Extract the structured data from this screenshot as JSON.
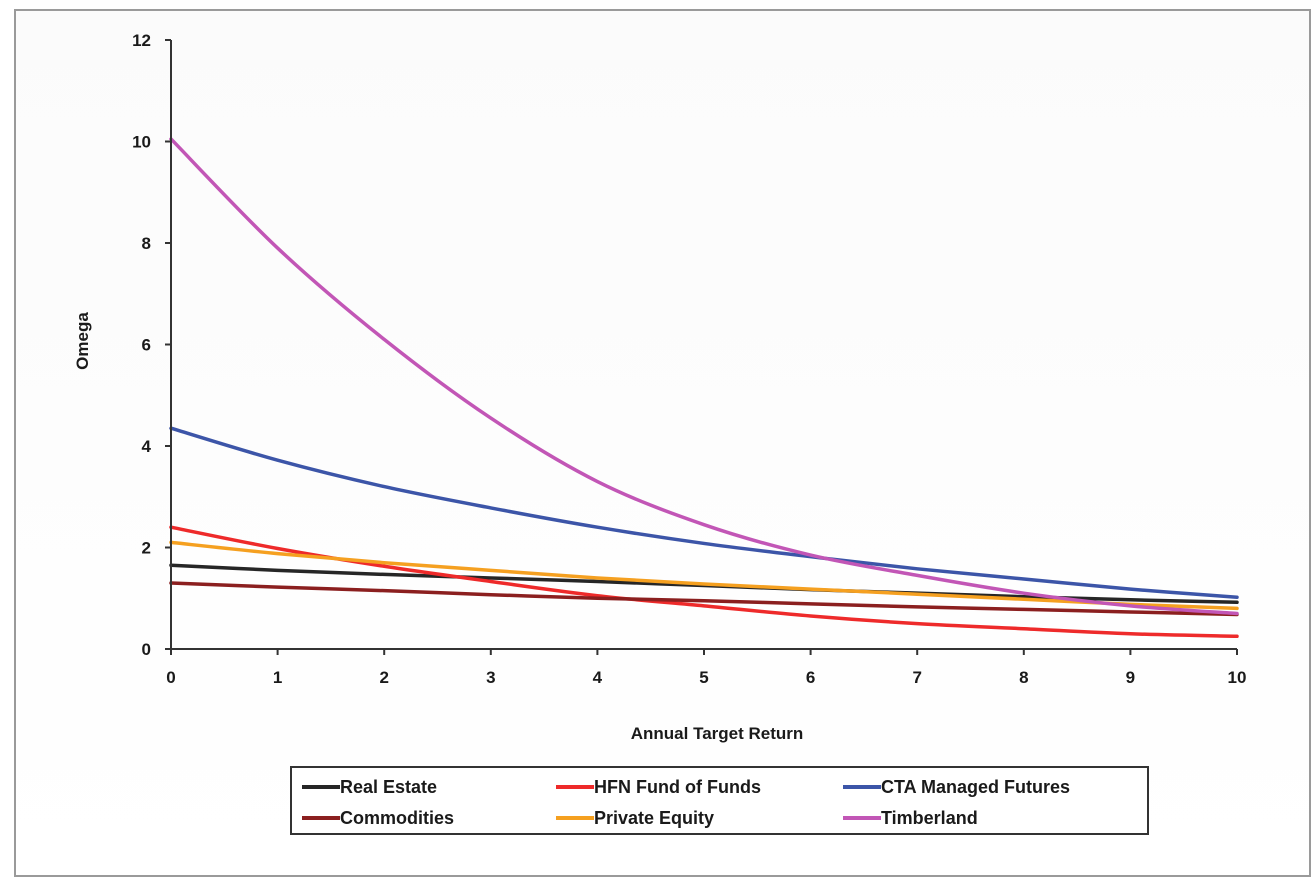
{
  "chart_data": {
    "type": "line",
    "title": "",
    "xlabel": "Annual Target Return",
    "ylabel": "Omega",
    "xlim": [
      0,
      10
    ],
    "ylim": [
      0,
      12
    ],
    "x_ticks": [
      0,
      1,
      2,
      3,
      4,
      5,
      6,
      7,
      8,
      9,
      10
    ],
    "y_ticks": [
      0,
      2,
      4,
      6,
      8,
      10,
      12
    ],
    "grid": false,
    "legend_position": "bottom",
    "x": [
      0,
      1,
      2,
      3,
      4,
      5,
      6,
      7,
      8,
      9,
      10
    ],
    "series": [
      {
        "name": "Real Estate",
        "color": "#262626",
        "values": [
          1.65,
          1.55,
          1.47,
          1.4,
          1.33,
          1.25,
          1.17,
          1.1,
          1.03,
          0.97,
          0.92
        ]
      },
      {
        "name": "HFN Fund of Funds",
        "color": "#ee2a2a",
        "values": [
          2.4,
          1.98,
          1.63,
          1.33,
          1.05,
          0.85,
          0.65,
          0.5,
          0.4,
          0.3,
          0.25
        ]
      },
      {
        "name": "CTA Managed Futures",
        "color": "#3c55a8",
        "values": [
          4.35,
          3.72,
          3.2,
          2.78,
          2.4,
          2.08,
          1.82,
          1.58,
          1.38,
          1.18,
          1.02
        ]
      },
      {
        "name": "Commodities",
        "color": "#8b1f1f",
        "values": [
          1.3,
          1.22,
          1.15,
          1.07,
          1.0,
          0.95,
          0.89,
          0.83,
          0.78,
          0.73,
          0.68
        ]
      },
      {
        "name": "Private Equity",
        "color": "#f5a020",
        "values": [
          2.1,
          1.88,
          1.7,
          1.55,
          1.4,
          1.28,
          1.18,
          1.08,
          0.98,
          0.88,
          0.8
        ]
      },
      {
        "name": "Timberland",
        "color": "#c256b6",
        "values": [
          10.05,
          7.9,
          6.1,
          4.55,
          3.3,
          2.45,
          1.85,
          1.45,
          1.1,
          0.85,
          0.7
        ]
      }
    ]
  }
}
